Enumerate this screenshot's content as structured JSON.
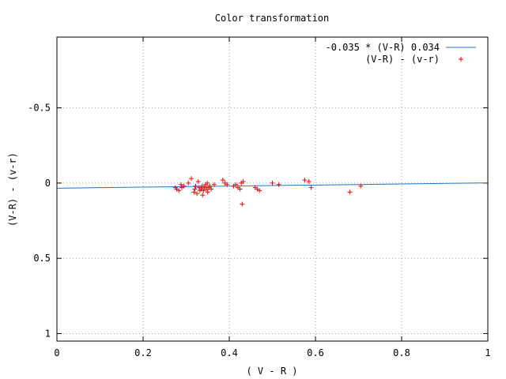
{
  "chart_data": {
    "type": "scatter",
    "title": "Color transformation",
    "xlabel": "( V - R )",
    "ylabel": "(V-R) - (v-r)",
    "xlim": [
      0,
      1
    ],
    "ylim": [
      1.05,
      -0.97
    ],
    "y_inverted": true,
    "grid": true,
    "legend_position": "top-right",
    "x_ticks": [
      0,
      0.2,
      0.4,
      0.6,
      0.8,
      1
    ],
    "x_tick_labels": [
      "0",
      "0.2",
      "0.4",
      "0.6",
      "0.8",
      "1"
    ],
    "y_ticks": [
      -0.5,
      0,
      0.5,
      1
    ],
    "y_tick_labels": [
      "-0.5",
      "0",
      "0.5",
      "1"
    ],
    "series": [
      {
        "name": "-0.035 * (V-R) 0.034",
        "kind": "line",
        "color": "#1f78c8",
        "x": [
          0,
          1
        ],
        "y": [
          0.034,
          -0.001
        ]
      },
      {
        "name": "(V-R) - (v-r)",
        "kind": "points",
        "marker": "+",
        "color": "#ff0000",
        "x": [
          0.275,
          0.278,
          0.283,
          0.288,
          0.29,
          0.295,
          0.305,
          0.312,
          0.318,
          0.32,
          0.322,
          0.325,
          0.328,
          0.33,
          0.332,
          0.335,
          0.337,
          0.338,
          0.34,
          0.342,
          0.345,
          0.347,
          0.349,
          0.35,
          0.352,
          0.355,
          0.358,
          0.365,
          0.385,
          0.39,
          0.395,
          0.41,
          0.415,
          0.42,
          0.425,
          0.428,
          0.43,
          0.432,
          0.46,
          0.465,
          0.47,
          0.5,
          0.515,
          0.575,
          0.585,
          0.59,
          0.68,
          0.705
        ],
        "y": [
          0.03,
          0.04,
          0.05,
          0.01,
          0.03,
          0.02,
          0.0,
          -0.03,
          0.06,
          0.04,
          0.02,
          0.07,
          -0.01,
          0.03,
          0.05,
          0.04,
          0.02,
          0.08,
          0.05,
          0.03,
          0.01,
          0.04,
          0.0,
          0.06,
          0.03,
          0.02,
          0.04,
          0.01,
          -0.02,
          0.0,
          0.01,
          0.02,
          0.01,
          0.03,
          0.04,
          0.0,
          0.14,
          -0.01,
          0.03,
          0.04,
          0.05,
          0.0,
          0.01,
          -0.02,
          -0.01,
          0.03,
          0.06,
          0.02
        ]
      }
    ]
  }
}
